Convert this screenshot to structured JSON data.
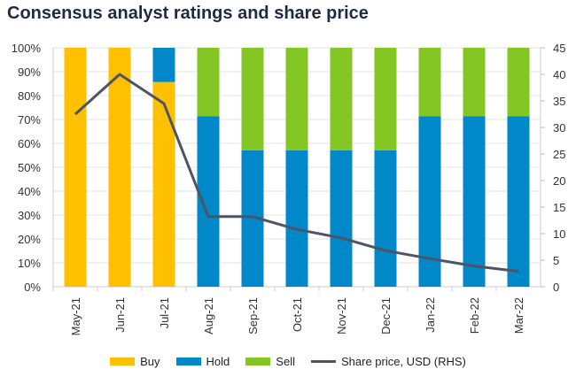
{
  "chart_data": {
    "type": "bar",
    "title": "Consensus analyst ratings and share price",
    "categories": [
      "May-21",
      "Jun-21",
      "Jul-21",
      "Aug-21",
      "Sep-21",
      "Oct-21",
      "Nov-21",
      "Dec-21",
      "Jan-22",
      "Feb-22",
      "Mar-22"
    ],
    "stacked": true,
    "series": [
      {
        "name": "Buy",
        "color": "#FFC000",
        "values": [
          100,
          100,
          85.7,
          0,
          0,
          0,
          0,
          0,
          0,
          0,
          0
        ]
      },
      {
        "name": "Hold",
        "color": "#0088C8",
        "values": [
          0,
          0,
          14.3,
          71.4,
          57.1,
          57.1,
          57.1,
          57.1,
          71.4,
          71.4,
          71.4
        ]
      },
      {
        "name": "Sell",
        "color": "#84C623",
        "values": [
          0,
          0,
          0,
          28.6,
          42.9,
          42.9,
          42.9,
          42.9,
          28.6,
          28.6,
          28.6
        ]
      }
    ],
    "line_series": {
      "name": "Share price, USD (RHS)",
      "color": "#4D5564",
      "axis": "right",
      "values": [
        32.5,
        40,
        34.5,
        13.2,
        13.2,
        10.8,
        9.2,
        6.8,
        5.3,
        3.9,
        2.9
      ]
    },
    "ylim_left": [
      0,
      100
    ],
    "yticks_left": [
      "0%",
      "10%",
      "20%",
      "30%",
      "40%",
      "50%",
      "60%",
      "70%",
      "80%",
      "90%",
      "100%"
    ],
    "ylim_right": [
      0,
      45
    ],
    "yticks_right": [
      "0",
      "5",
      "10",
      "15",
      "20",
      "25",
      "30",
      "35",
      "40",
      "45"
    ],
    "grid": true,
    "legend": "bottom"
  }
}
